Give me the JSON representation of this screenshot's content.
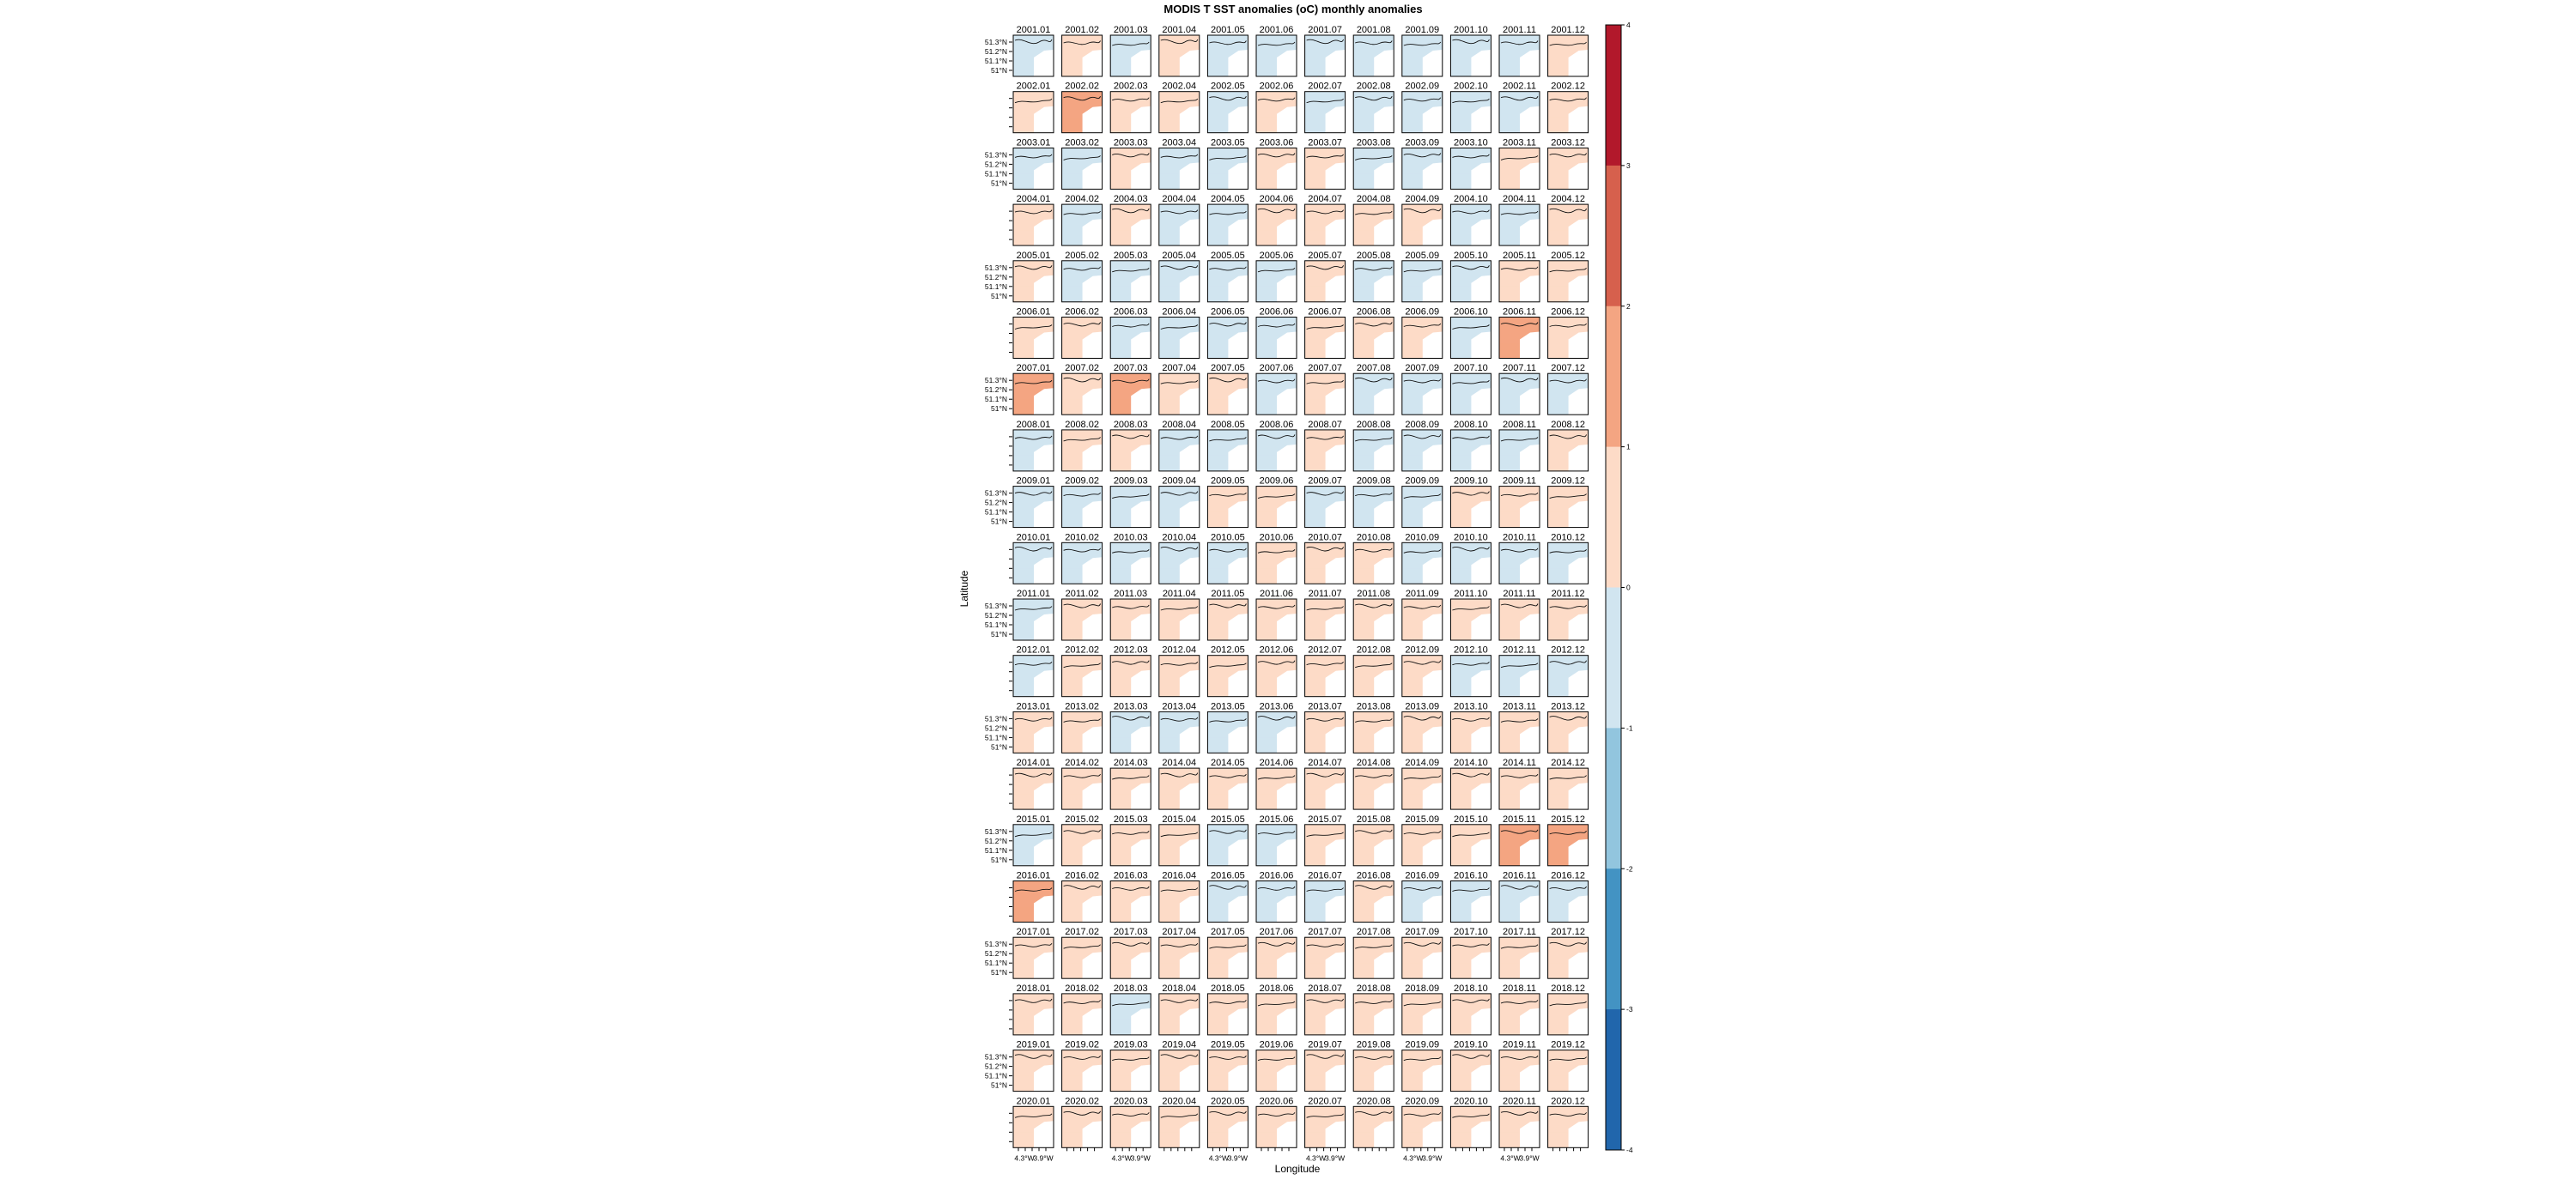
{
  "chart_data": {
    "type": "heatmap",
    "title": "MODIS T SST anomalies (oC) monthly anomalies",
    "xlabel": "Longitude",
    "ylabel": "Latitude",
    "years": [
      "2001",
      "2002",
      "2003",
      "2004",
      "2005",
      "2006",
      "2007",
      "2008",
      "2009",
      "2010",
      "2011",
      "2012",
      "2013",
      "2014",
      "2015",
      "2016",
      "2017",
      "2018",
      "2019",
      "2020"
    ],
    "months": [
      "01",
      "02",
      "03",
      "04",
      "05",
      "06",
      "07",
      "08",
      "09",
      "10",
      "11",
      "12"
    ],
    "lat_tick_labels": [
      "51.3°N",
      "51.2°N",
      "51.1°N",
      "51°N"
    ],
    "lon_tick_labels": [
      "4.3°W",
      "3.9°W"
    ],
    "colorbar": {
      "range": [
        -4,
        4
      ],
      "ticks": [
        "-4",
        "-3",
        "-2",
        "-1",
        "0",
        "1",
        "2",
        "3",
        "4"
      ],
      "colors": [
        "#2166ac",
        "#4393c3",
        "#92c5de",
        "#d1e5f0",
        "#fddbc7",
        "#f4a582",
        "#d6604d",
        "#b2182b"
      ]
    },
    "panel_anomaly_classes": [
      [
        -1,
        1,
        -1,
        1,
        -1,
        -1,
        -1,
        -1,
        -1,
        -1,
        -1,
        1
      ],
      [
        1,
        2,
        1,
        1,
        -1,
        1,
        -1,
        -1,
        -1,
        -1,
        -1,
        1
      ],
      [
        -1,
        -1,
        1,
        -1,
        -1,
        1,
        1,
        -1,
        -1,
        -1,
        1,
        1
      ],
      [
        1,
        -1,
        1,
        -1,
        -1,
        1,
        1,
        1,
        1,
        -1,
        -1,
        1
      ],
      [
        1,
        -1,
        -1,
        -1,
        -1,
        -1,
        1,
        -1,
        -1,
        -1,
        1,
        1
      ],
      [
        1,
        1,
        -1,
        -1,
        -1,
        -1,
        1,
        1,
        1,
        -1,
        2,
        1
      ],
      [
        2,
        1,
        2,
        1,
        1,
        -1,
        1,
        -1,
        -1,
        -1,
        -1,
        -1
      ],
      [
        -1,
        1,
        1,
        -1,
        -1,
        -1,
        1,
        -1,
        -1,
        -1,
        -1,
        1
      ],
      [
        -1,
        -1,
        -1,
        -1,
        1,
        1,
        -1,
        -1,
        -1,
        1,
        1,
        1
      ],
      [
        -1,
        -1,
        -1,
        -1,
        -1,
        1,
        1,
        1,
        -1,
        -1,
        -1,
        -1
      ],
      [
        -1,
        1,
        1,
        1,
        1,
        1,
        1,
        1,
        1,
        1,
        1,
        1
      ],
      [
        -1,
        1,
        1,
        1,
        1,
        1,
        1,
        1,
        1,
        -1,
        -1,
        -1
      ],
      [
        1,
        1,
        -1,
        -1,
        -1,
        -1,
        1,
        1,
        1,
        1,
        1,
        1
      ],
      [
        1,
        1,
        1,
        1,
        1,
        1,
        1,
        1,
        1,
        1,
        1,
        1
      ],
      [
        -1,
        1,
        1,
        1,
        -1,
        -1,
        1,
        1,
        1,
        1,
        2,
        2
      ],
      [
        2,
        1,
        1,
        1,
        -1,
        -1,
        -1,
        1,
        -1,
        -1,
        -1,
        -1
      ],
      [
        1,
        1,
        1,
        1,
        1,
        1,
        1,
        1,
        1,
        1,
        1,
        1
      ],
      [
        1,
        1,
        -1,
        1,
        1,
        1,
        1,
        1,
        1,
        1,
        1,
        1
      ],
      [
        1,
        1,
        1,
        1,
        1,
        1,
        1,
        1,
        1,
        1,
        1,
        1
      ],
      [
        1,
        1,
        1,
        1,
        1,
        1,
        1,
        1,
        1,
        1,
        1,
        1
      ]
    ]
  }
}
